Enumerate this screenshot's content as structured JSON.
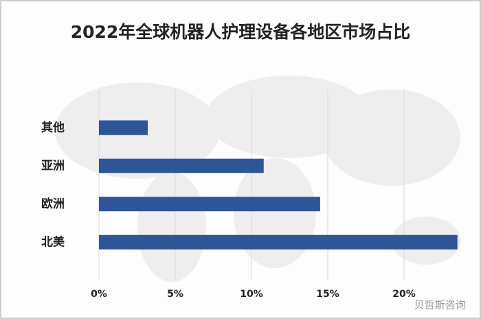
{
  "chart_data": {
    "type": "bar",
    "orientation": "horizontal",
    "title": "2022年全球机器人护理设备各地区市场占比",
    "categories": [
      "其他",
      "亚洲",
      "欧洲",
      "北美"
    ],
    "values": [
      3.2,
      10.8,
      14.5,
      23.5
    ],
    "color": "#2e5597",
    "xlim": [
      0,
      25
    ],
    "xticks": [
      {
        "value": 0,
        "label": "0%"
      },
      {
        "value": 5,
        "label": "5%"
      },
      {
        "value": 10,
        "label": "10%"
      },
      {
        "value": 15,
        "label": "15%"
      },
      {
        "value": 20,
        "label": "20%"
      }
    ],
    "grid": true,
    "watermark": "贝哲斯咨询"
  }
}
